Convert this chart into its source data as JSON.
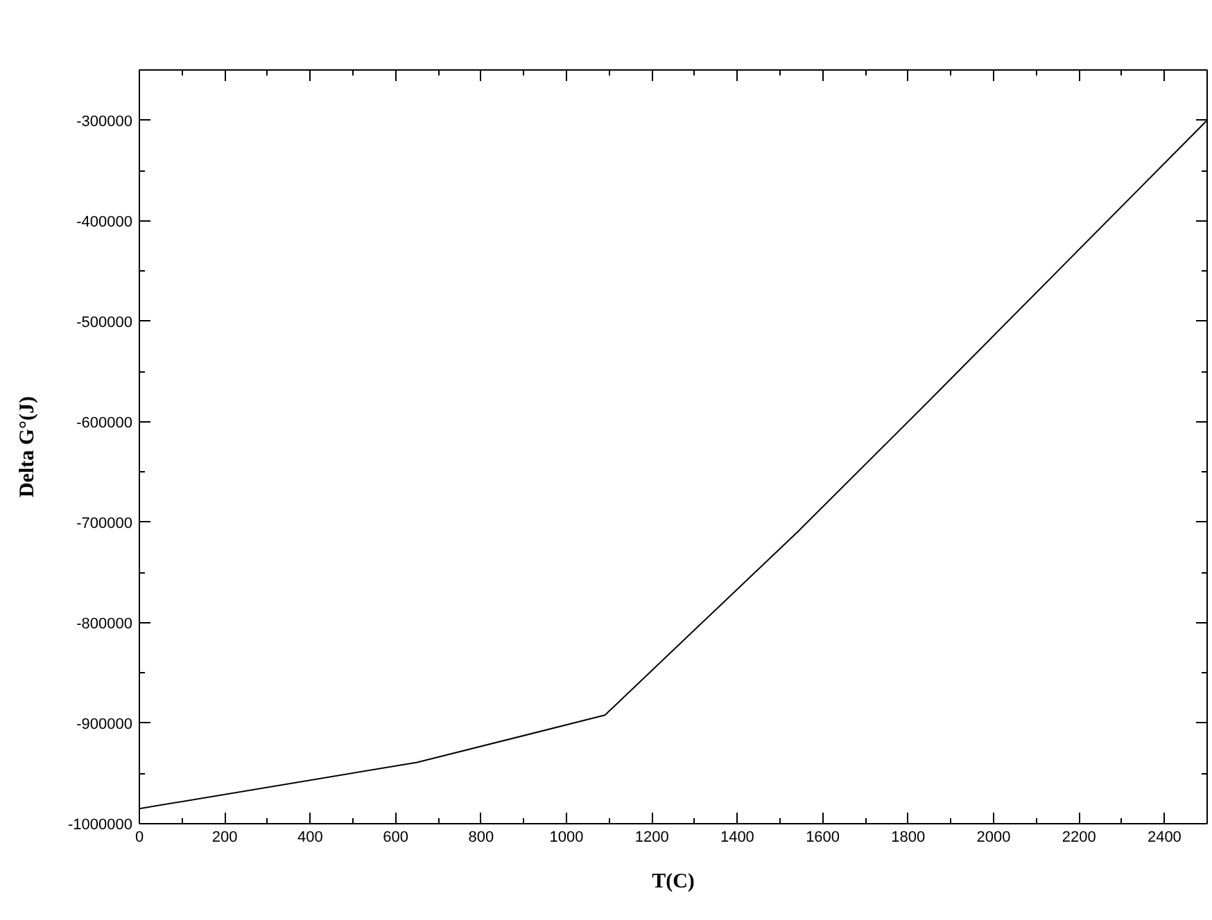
{
  "chart_data": {
    "type": "line",
    "xlabel": "T(C)",
    "ylabel": "Delta G°(J)",
    "x": [
      0,
      650,
      1090,
      1545,
      1847,
      2500
    ],
    "series": [
      {
        "color": "#000000",
        "values": [
          -985000,
          -939000,
          -892000,
          -708000,
          -580000,
          -300000
        ]
      }
    ],
    "xlim": [
      0,
      2500
    ],
    "ylim": [
      -1000000,
      -250000
    ],
    "xticks": [
      0,
      200,
      400,
      600,
      800,
      1000,
      1200,
      1400,
      1600,
      1800,
      2000,
      2200,
      2400
    ],
    "yticks": [
      -1000000,
      -900000,
      -800000,
      -700000,
      -600000,
      -500000,
      -400000,
      -300000
    ],
    "grid": false,
    "marker": "none",
    "line_style": "solid"
  }
}
